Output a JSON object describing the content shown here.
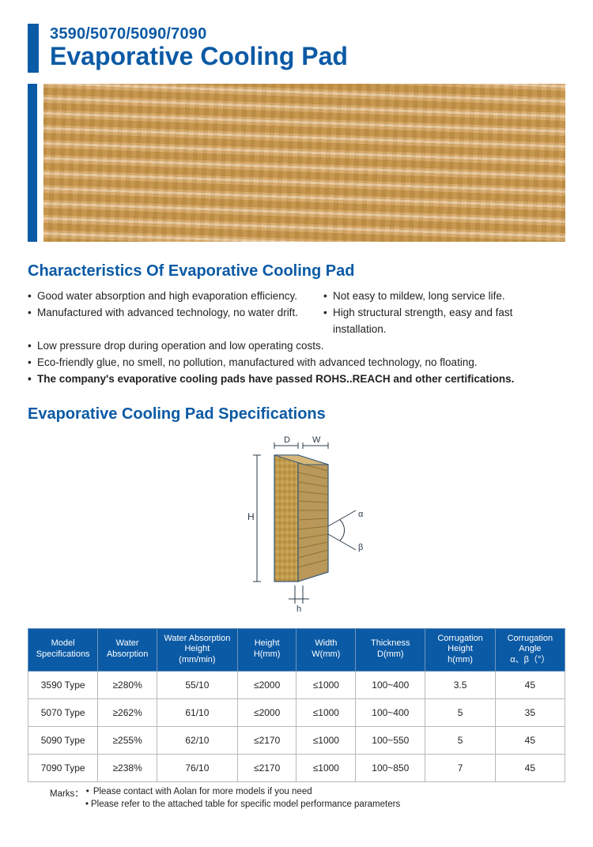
{
  "colors": {
    "brand": "#0b5aa5",
    "text": "#222222",
    "tableHeaderBg": "#0b5aa5",
    "tableHeaderBorder": "#6f94bf",
    "tableCellBorder": "#b8b8b8",
    "heroDark": "#c59348",
    "heroMid": "#d8ab6a",
    "heroLight": "#e9caa0"
  },
  "title": {
    "sub": "3590/5070/5090/7090",
    "main": "Evaporative Cooling Pad"
  },
  "characteristics": {
    "heading": "Characteristics Of Evaporative Cooling Pad",
    "twoColRows": [
      {
        "left": "Good water absorption and high evaporation efficiency.",
        "right": "Not easy to mildew, long service life."
      },
      {
        "left": "Manufactured with advanced technology, no water drift.",
        "right": "High structural strength, easy and fast installation."
      }
    ],
    "fullRows": [
      "Low pressure drop during operation and low operating costs.",
      "Eco-friendly glue, no smell, no pollution, manufactured with advanced technology, no floating."
    ],
    "boldRow": "The company's evaporative cooling pads have passed ROHS..REACH and other certifications."
  },
  "specs": {
    "heading": "Evaporative Cooling Pad Specifications",
    "diagram": {
      "labels": {
        "D": "D",
        "W": "W",
        "H": "H",
        "h": "h",
        "alpha": "α",
        "beta": "β"
      },
      "fillColor": "#c9a55a",
      "edgeColor": "#3a5a7a",
      "lineColor": "#2a3b4a"
    },
    "columns": [
      "Model\nSpecifications",
      "Water\nAbsorption",
      "Water Absorption\nHeight\n(mm/min)",
      "Height\nH(mm)",
      "Width\nW(mm)",
      "Thickness\nD(mm)",
      "Corrugation\nHeight\nh(mm)",
      "Corrugation\nAngle\nα、β（°）"
    ],
    "colWidths": [
      "13%",
      "11%",
      "15%",
      "11%",
      "11%",
      "13%",
      "13%",
      "13%"
    ],
    "rows": [
      [
        "3590 Type",
        "≥280%",
        "55/10",
        "≤2000",
        "≤1000",
        "100~400",
        "3.5",
        "45"
      ],
      [
        "5070 Type",
        "≥262%",
        "61/10",
        "≤2000",
        "≤1000",
        "100~400",
        "5",
        "35"
      ],
      [
        "5090 Type",
        "≥255%",
        "62/10",
        "≤2170",
        "≤1000",
        "100~550",
        "5",
        "45"
      ],
      [
        "7090 Type",
        "≥238%",
        "76/10",
        "≤2170",
        "≤1000",
        "100~850",
        "7",
        "45"
      ]
    ]
  },
  "marks": {
    "label": "Marks：",
    "items": [
      "Please contact with Aolan for more models if you need",
      "Please refer to the attached table for specific model performance parameters"
    ]
  }
}
